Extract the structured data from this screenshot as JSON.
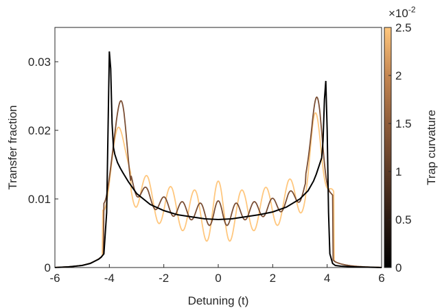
{
  "chart_data": {
    "type": "line",
    "xlabel": "Detuning (t)",
    "ylabel": "Transfer fraction",
    "xlim": [
      -6,
      6
    ],
    "ylim": [
      0,
      0.035
    ],
    "x_ticks": [
      "-6",
      "-4",
      "-2",
      "0",
      "2",
      "4",
      "6"
    ],
    "y_ticks": [
      "0",
      "0.01",
      "0.02",
      "0.03"
    ],
    "grid": false,
    "legend": "none",
    "series": [
      {
        "color": "#000000",
        "x": [
          -6,
          -5.5,
          -5,
          -4.7,
          -4.5,
          -4.4,
          -4.3,
          -4.2,
          -4.1,
          -4.05,
          -4.0,
          -3.95,
          -3.9,
          -3.85,
          -3.8,
          -3.7,
          -3.6,
          -3.5,
          -3.3,
          -3.0,
          -2.5,
          -2.0,
          -1.5,
          -1.0,
          -0.5,
          0,
          0.5,
          1.0,
          1.5,
          2.0,
          2.5,
          3.0,
          3.3,
          3.5,
          3.6,
          3.7,
          3.8,
          3.85,
          3.9,
          3.95,
          4.0,
          4.05,
          4.1,
          4.2,
          4.3,
          4.5,
          5.0,
          6
        ],
        "y": [
          0,
          0.0001,
          0.0003,
          0.0006,
          0.001,
          0.0012,
          0.0015,
          0.002,
          0.008,
          0.02,
          0.0315,
          0.029,
          0.021,
          0.0175,
          0.0165,
          0.0153,
          0.0145,
          0.0138,
          0.0125,
          0.0108,
          0.0092,
          0.0083,
          0.0077,
          0.0074,
          0.0071,
          0.007,
          0.0071,
          0.0074,
          0.0077,
          0.0081,
          0.0088,
          0.01,
          0.0112,
          0.0126,
          0.0136,
          0.0148,
          0.016,
          0.0185,
          0.0245,
          0.0272,
          0.02,
          0.008,
          0.002,
          0.0006,
          0.0003,
          0.0002,
          0.0001,
          0
        ]
      }
    ],
    "colorbar": {
      "label": "Trap curvature",
      "multiplier": "×10",
      "multiplier_exp": "-2",
      "ticks": [
        "0",
        "0.5",
        "1",
        "1.5",
        "2",
        "2.5"
      ],
      "range": [
        0,
        2.5
      ],
      "colormap": [
        "#000000",
        "#2a1a12",
        "#5c3a26",
        "#8e5c3a",
        "#c48651",
        "#ffc77e"
      ]
    }
  }
}
